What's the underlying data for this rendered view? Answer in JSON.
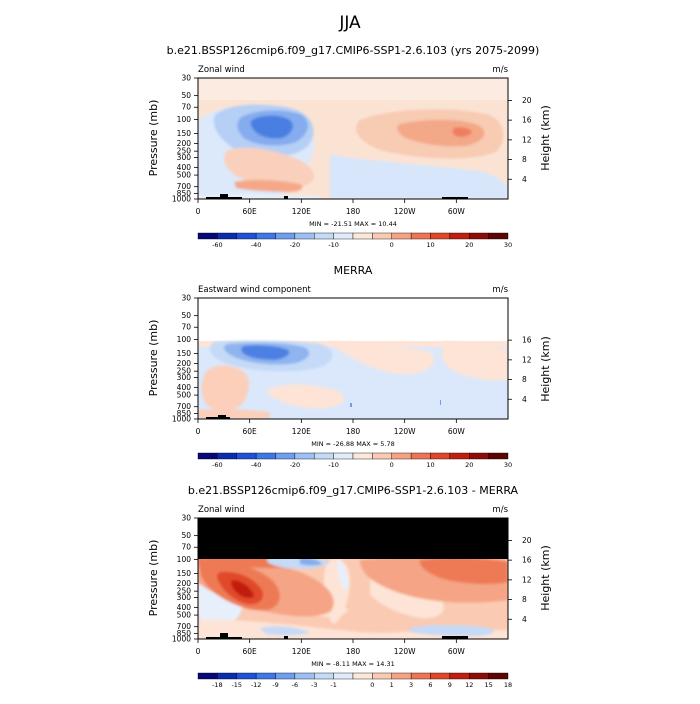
{
  "main_title": "JJA",
  "panels": [
    {
      "title": "b.e21.BSSP126cmip6.f09_g17.CMIP6-SSP1-2.6.103 (yrs 2075-2099)",
      "left_label": "Zonal wind",
      "units": "m/s",
      "y_title": "Pressure (mb)",
      "y2_title": "Height (km)",
      "x_ticks": [
        "0",
        "60E",
        "120E",
        "180",
        "120W",
        "60W"
      ],
      "y_ticks": [
        "30",
        "50",
        "70",
        "100",
        "150",
        "200",
        "250",
        "300",
        "400",
        "500",
        "700",
        "850",
        "1000"
      ],
      "y2_ticks": [
        "20",
        "16",
        "12",
        "8",
        "4"
      ],
      "stats": "MIN = -21.51   MAX =  10.44",
      "colorbar_labels": [
        "-60",
        "-40",
        "-20",
        "-10",
        "0",
        "10",
        "20",
        "30"
      ],
      "colorbar_colors": [
        "#08087a",
        "#0c2cb0",
        "#1f52d8",
        "#3b78e8",
        "#6f9ef0",
        "#9cc0f5",
        "#c4dbf8",
        "#e1ecfb",
        "#fde6da",
        "#fbcab3",
        "#f6a283",
        "#ef7452",
        "#e04628",
        "#c21e10",
        "#8f0d06",
        "#5c0503"
      ]
    },
    {
      "title": "MERRA",
      "left_label": "Eastward wind component",
      "units": "m/s",
      "y_title": "Pressure (mb)",
      "y2_title": "Height (km)",
      "x_ticks": [
        "0",
        "60E",
        "120E",
        "180",
        "120W",
        "60W"
      ],
      "y_ticks": [
        "30",
        "50",
        "70",
        "100",
        "150",
        "200",
        "250",
        "300",
        "400",
        "500",
        "700",
        "850",
        "1000"
      ],
      "y2_ticks": [
        "16",
        "12",
        "8",
        "4"
      ],
      "stats": "MIN = -26.88   MAX =  5.78",
      "colorbar_labels": [
        "-60",
        "-40",
        "-20",
        "-10",
        "0",
        "10",
        "20",
        "30"
      ],
      "colorbar_colors": [
        "#08087a",
        "#0c2cb0",
        "#1f52d8",
        "#3b78e8",
        "#6f9ef0",
        "#9cc0f5",
        "#c4dbf8",
        "#e1ecfb",
        "#fde6da",
        "#fbcab3",
        "#f6a283",
        "#ef7452",
        "#e04628",
        "#c21e10",
        "#8f0d06",
        "#5c0503"
      ]
    },
    {
      "title": "b.e21.BSSP126cmip6.f09_g17.CMIP6-SSP1-2.6.103 - MERRA",
      "left_label": "Zonal wind",
      "units": "m/s",
      "y_title": "Pressure (mb)",
      "y2_title": "Height (km)",
      "x_ticks": [
        "0",
        "60E",
        "120E",
        "180",
        "120W",
        "60W"
      ],
      "y_ticks": [
        "30",
        "50",
        "70",
        "100",
        "150",
        "200",
        "250",
        "300",
        "400",
        "500",
        "700",
        "850",
        "1000"
      ],
      "y2_ticks": [
        "20",
        "16",
        "12",
        "8",
        "4"
      ],
      "stats": "MIN = -8.11   MAX =  14.31",
      "colorbar_labels": [
        "-18",
        "-15",
        "-12",
        "-9",
        "-6",
        "-3",
        "-1",
        "0",
        "1",
        "3",
        "6",
        "9",
        "12",
        "15",
        "18"
      ],
      "colorbar_colors": [
        "#08087a",
        "#0c2cb0",
        "#1f52d8",
        "#3b78e8",
        "#6f9ef0",
        "#9cc0f5",
        "#c4dbf8",
        "#e1ecfb",
        "#fde6da",
        "#fbcab3",
        "#f6a283",
        "#ef7452",
        "#e04628",
        "#c21e10",
        "#8f0d06",
        "#5c0503"
      ]
    }
  ],
  "chart_data": [
    {
      "type": "heatmap",
      "title": "b.e21.BSSP126cmip6.f09_g17.CMIP6-SSP1-2.6.103 (yrs 2075-2099)",
      "xlabel": "",
      "ylabel": "Pressure (mb)",
      "y2label": "Height (km)",
      "xlim": [
        0,
        360
      ],
      "ylim_pressure": [
        30,
        1000
      ],
      "log_pressure_axis": true,
      "min": -21.51,
      "max": 10.44,
      "features": [
        {
          "sign": "negative",
          "lon": 90,
          "p": 120,
          "value": -20
        },
        {
          "sign": "positive",
          "lon": 290,
          "p": 130,
          "value": 10
        },
        {
          "sign": "positive",
          "lon": 80,
          "p": 300,
          "value": 5
        },
        {
          "sign": "positive",
          "lon": 80,
          "p": 750,
          "value": 8
        },
        {
          "sign": "negative",
          "lon": 240,
          "p": 600,
          "value": -3
        }
      ]
    },
    {
      "type": "heatmap",
      "title": "MERRA",
      "xlabel": "",
      "ylabel": "Pressure (mb)",
      "y2label": "Height (km)",
      "xlim": [
        0,
        360
      ],
      "ylim_pressure": [
        30,
        1000
      ],
      "data_top_pressure": 100,
      "log_pressure_axis": true,
      "min": -26.88,
      "max": 5.78,
      "features": [
        {
          "sign": "negative",
          "lon": 90,
          "p": 160,
          "value": -25
        },
        {
          "sign": "positive",
          "lon": 290,
          "p": 150,
          "value": 3
        },
        {
          "sign": "positive",
          "lon": 60,
          "p": 450,
          "value": 4
        },
        {
          "sign": "negative",
          "lon": 230,
          "p": 400,
          "value": -4
        }
      ]
    },
    {
      "type": "heatmap",
      "title": "b.e21.BSSP126cmip6.f09_g17.CMIP6-SSP1-2.6.103 - MERRA",
      "xlabel": "",
      "ylabel": "Pressure (mb)",
      "y2label": "Height (km)",
      "xlim": [
        0,
        360
      ],
      "ylim_pressure": [
        30,
        1000
      ],
      "masked_above_pressure": 100,
      "log_pressure_axis": true,
      "min": -8.11,
      "max": 14.31,
      "features": [
        {
          "sign": "positive",
          "lon": 50,
          "p": 220,
          "value": 14
        },
        {
          "sign": "positive",
          "lon": 300,
          "p": 150,
          "value": 9
        },
        {
          "sign": "positive",
          "lon": 130,
          "p": 300,
          "value": 6
        },
        {
          "sign": "negative",
          "lon": 90,
          "p": 110,
          "value": -3
        },
        {
          "sign": "negative",
          "lon": 260,
          "p": 900,
          "value": -3
        }
      ]
    }
  ]
}
